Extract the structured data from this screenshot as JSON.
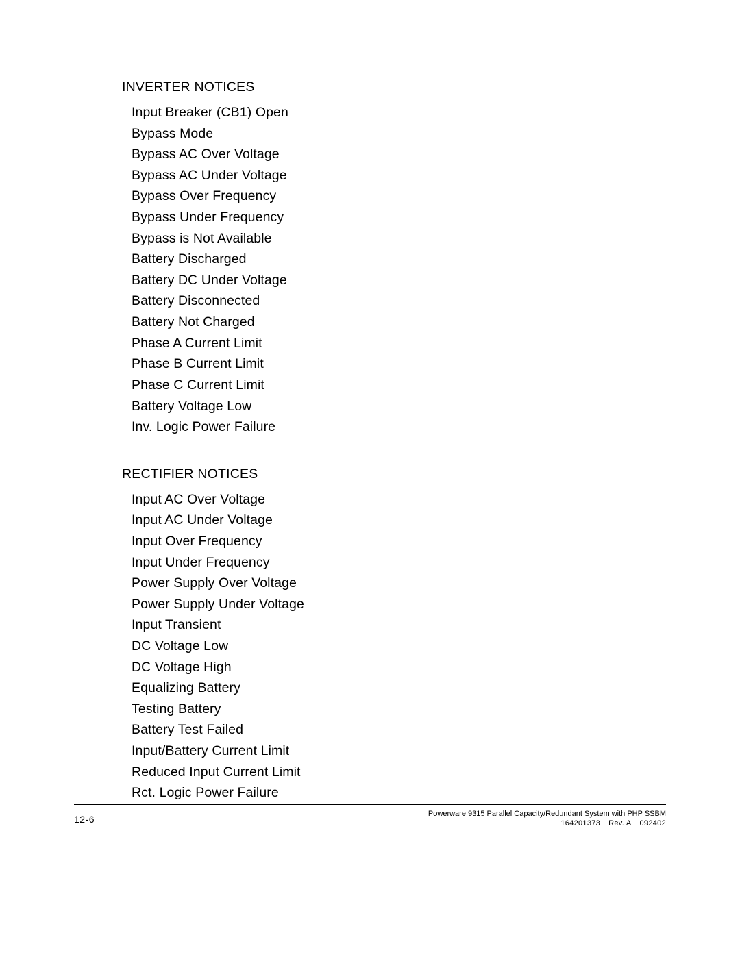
{
  "sections": [
    {
      "heading": "INVERTER NOTICES",
      "items": [
        "Input Breaker (CB1) Open",
        "Bypass Mode",
        "Bypass AC Over Voltage",
        "Bypass AC Under Voltage",
        "Bypass Over Frequency",
        "Bypass Under Frequency",
        "Bypass is Not Available",
        "Battery Discharged",
        "Battery DC Under Voltage",
        "Battery Disconnected",
        "Battery Not Charged",
        "Phase A Current Limit",
        "Phase B Current Limit",
        "Phase C Current Limit",
        "Battery Voltage Low",
        "Inv. Logic Power Failure"
      ]
    },
    {
      "heading": "RECTIFIER NOTICES",
      "items": [
        "Input AC Over Voltage",
        "Input AC Under Voltage",
        "Input Over Frequency",
        "Input Under Frequency",
        "Power Supply Over Voltage",
        "Power Supply Under Voltage",
        "Input Transient",
        "DC Voltage Low",
        "DC Voltage High",
        "Equalizing Battery",
        "Testing Battery",
        "Battery Test Failed",
        "Input/Battery Current Limit",
        "Reduced Input Current Limit",
        "Rct. Logic Power Failure"
      ]
    }
  ],
  "footer": {
    "page_number": "12-6",
    "line1": "Powerware 9315 Parallel Capacity/Redundant System with PHP SSBM",
    "doc_number": "164201373",
    "revision": "Rev. A",
    "date": "092402"
  }
}
